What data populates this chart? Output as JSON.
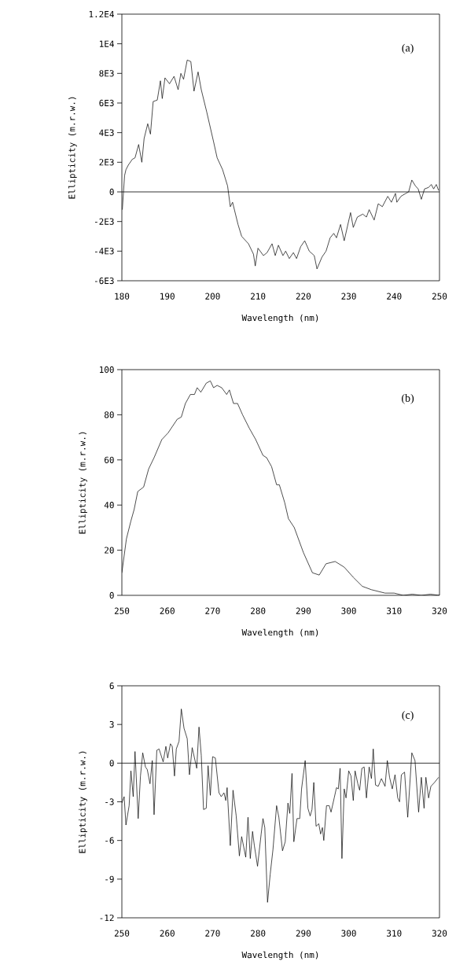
{
  "chart_data": [
    {
      "type": "line",
      "xlabel": "Wavelength (nm)",
      "ylabel": "Ellipticity (m.r.w.)",
      "annotations": [
        "(a)"
      ],
      "xlim": [
        180,
        250
      ],
      "xticks": [
        180,
        190,
        200,
        210,
        220,
        230,
        240,
        250
      ],
      "ylim": [
        -6000,
        12000
      ],
      "yticks": [
        {
          "value": -6000,
          "label": "-6E3"
        },
        {
          "value": -4000,
          "label": "-4E3"
        },
        {
          "value": -2000,
          "label": "-2E3"
        },
        0,
        {
          "value": 2000,
          "label": "2E3"
        },
        {
          "value": 4000,
          "label": "4E3"
        },
        {
          "value": 6000,
          "label": "6E3"
        },
        {
          "value": 8000,
          "label": "8E3"
        },
        {
          "value": 10000,
          "label": "1E4"
        },
        {
          "value": 12000,
          "label": "1.2E4"
        }
      ],
      "ref_lines": [
        {
          "axis": "y",
          "value": 0
        }
      ],
      "series": [
        {
          "color": "#000000",
          "x": [
            180.1,
            180.6,
            180.9,
            181.4,
            182.3,
            182.9,
            183.7,
            184.4,
            184.9,
            185.7,
            186.3,
            186.9,
            187.8,
            188.5,
            188.9,
            189.5,
            190.5,
            191.5,
            192.4,
            193.0,
            193.6,
            194.4,
            195.2,
            195.9,
            196.8,
            197.5,
            198.7,
            200.2,
            201.0,
            202.2,
            203.3,
            203.9,
            204.4,
            205.6,
            206.4,
            207.9,
            209.0,
            209.4,
            210.0,
            211.2,
            212.0,
            213.1,
            213.8,
            214.5,
            215.5,
            216.1,
            216.9,
            217.8,
            218.5,
            219.4,
            220.3,
            221.3,
            222.4,
            223.0,
            224.1,
            225.0,
            225.9,
            226.7,
            227.3,
            228.2,
            229.0,
            230.4,
            231.0,
            231.9,
            233.1,
            233.9,
            234.5,
            235.6,
            236.5,
            237.4,
            238.6,
            239.4,
            240.3,
            240.6,
            241.5,
            242.6,
            243.2,
            243.9,
            244.7,
            245.3,
            246.0,
            246.7,
            247.6,
            248.2,
            248.7,
            249.3,
            249.8
          ],
          "values": [
            -1200,
            1100,
            1500,
            1800,
            2200,
            2300,
            3200,
            2000,
            3600,
            4600,
            3900,
            6100,
            6200,
            7500,
            6300,
            7700,
            7300,
            7800,
            6900,
            8000,
            7600,
            8900,
            8800,
            6800,
            8100,
            6900,
            5400,
            3400,
            2300,
            1500,
            400,
            -1000,
            -700,
            -2200,
            -3000,
            -3500,
            -4200,
            -5000,
            -3800,
            -4300,
            -4100,
            -3500,
            -4300,
            -3600,
            -4300,
            -4000,
            -4500,
            -4100,
            -4500,
            -3700,
            -3300,
            -4000,
            -4300,
            -5200,
            -4400,
            -4000,
            -3100,
            -2800,
            -3100,
            -2200,
            -3300,
            -1400,
            -2400,
            -1700,
            -1500,
            -1700,
            -1200,
            -1900,
            -800,
            -1000,
            -300,
            -700,
            -100,
            -700,
            -300,
            -100,
            0,
            800,
            400,
            200,
            -500,
            200,
            300,
            500,
            200,
            500,
            100
          ]
        }
      ]
    },
    {
      "type": "line",
      "xlabel": "Wavelength (nm)",
      "ylabel": "Ellipticity (m.r.w.)",
      "annotations": [
        "(b)"
      ],
      "xlim": [
        250,
        320
      ],
      "xticks": [
        250,
        260,
        270,
        280,
        290,
        300,
        310,
        320
      ],
      "ylim": [
        0,
        100
      ],
      "yticks": [
        0,
        20,
        40,
        60,
        80,
        100
      ],
      "series": [
        {
          "color": "#000000",
          "x": [
            250,
            251,
            252,
            252.7,
            253.5,
            254.8,
            255.9,
            257.1,
            258.8,
            260.2,
            262.2,
            263.1,
            264.0,
            265.1,
            266.0,
            266.6,
            267.4,
            268.6,
            269.5,
            270.2,
            271.0,
            272.0,
            273.1,
            273.7,
            274.6,
            275.5,
            276.6,
            278.1,
            279.5,
            281.1,
            281.9,
            283.0,
            284.1,
            284.7,
            285.9,
            286.7,
            288,
            290,
            292,
            293.5,
            295,
            297,
            299,
            301,
            303,
            305,
            308,
            310,
            312,
            314,
            316,
            318,
            320
          ],
          "values": [
            10,
            25,
            33,
            38,
            46,
            48,
            56,
            61,
            69,
            72,
            78,
            79,
            85,
            89,
            89,
            92,
            90,
            94,
            95,
            92,
            93,
            92,
            89,
            91,
            85,
            85,
            80,
            74,
            69,
            62,
            61,
            57,
            49,
            49,
            41,
            34,
            30,
            19,
            10,
            9,
            14,
            15,
            12.5,
            8,
            4,
            2.5,
            1,
            1,
            0,
            0.5,
            0,
            0.5,
            0
          ]
        }
      ]
    },
    {
      "type": "line",
      "xlabel": "Wavelength (nm)",
      "ylabel": "Ellipticity (m.r.w.)",
      "annotations": [
        "(c)"
      ],
      "xlim": [
        250,
        320
      ],
      "xticks": [
        250,
        260,
        270,
        280,
        290,
        300,
        310,
        320
      ],
      "ylim": [
        -12,
        6
      ],
      "yticks": [
        -12,
        -9,
        -6,
        -3,
        0,
        3,
        6
      ],
      "ref_lines": [
        {
          "axis": "y",
          "value": 0
        }
      ],
      "series": [
        {
          "color": "#000000",
          "x": [
            250.0,
            250.5,
            250.9,
            251.6,
            252.0,
            252.5,
            252.9,
            253.6,
            254.1,
            254.6,
            255.2,
            255.6,
            256.2,
            256.7,
            257.1,
            257.7,
            258.2,
            259.1,
            259.7,
            260.1,
            260.7,
            261.1,
            261.6,
            262.0,
            262.6,
            263.1,
            263.7,
            264.4,
            264.9,
            265.5,
            266.5,
            267.0,
            267.5,
            268.0,
            268.6,
            269.0,
            269.5,
            270.0,
            270.6,
            271.4,
            271.9,
            272.5,
            272.9,
            273.2,
            273.9,
            274.5,
            275.2,
            275.9,
            276.4,
            277.3,
            277.8,
            278.3,
            278.8,
            279.2,
            279.9,
            280.7,
            281.1,
            281.5,
            282.1,
            282.7,
            283.3,
            284.1,
            284.6,
            285.4,
            286.0,
            286.6,
            287.0,
            287.5,
            287.9,
            288.6,
            289.2,
            289.6,
            290.4,
            291.0,
            291.5,
            291.9,
            292.3,
            292.8,
            293.4,
            293.8,
            294.2,
            294.5,
            295.1,
            295.7,
            296.1,
            296.8,
            297.3,
            297.7,
            298.1,
            298.5,
            299.0,
            299.4,
            300.0,
            300.5,
            301.0,
            301.4,
            302.0,
            302.4,
            302.9,
            303.4,
            303.9,
            304.5,
            305.0,
            305.4,
            305.9,
            306.5,
            307.2,
            308.0,
            308.5,
            309.0,
            309.6,
            310.2,
            310.8,
            311.2,
            311.6,
            312.3,
            313.0,
            313.9,
            314.6,
            315.4,
            316.0,
            316.6,
            317.0,
            317.6,
            318.1,
            318.9,
            319.8
          ],
          "values": [
            -3.1,
            -2.6,
            -4.8,
            -3.3,
            -0.6,
            -2.6,
            0.9,
            -4.3,
            -1.0,
            0.8,
            -0.3,
            -0.5,
            -1.6,
            0.2,
            -4.0,
            1.0,
            1.1,
            0.1,
            1.3,
            0.4,
            1.5,
            1.3,
            -1.0,
            1.1,
            1.7,
            4.2,
            2.7,
            1.9,
            -0.9,
            1.2,
            -0.4,
            2.8,
            0.6,
            -3.6,
            -3.5,
            -0.2,
            -2.5,
            0.5,
            0.4,
            -2.3,
            -2.6,
            -2.3,
            -2.9,
            -1.9,
            -6.4,
            -2.1,
            -4.1,
            -7.2,
            -5.7,
            -7.3,
            -4.2,
            -7.4,
            -5.3,
            -6.4,
            -8.0,
            -5.5,
            -4.3,
            -5.0,
            -10.8,
            -8.6,
            -6.7,
            -3.3,
            -4.2,
            -6.8,
            -6.1,
            -3.1,
            -3.9,
            -0.8,
            -6.1,
            -4.3,
            -4.3,
            -2.0,
            0.2,
            -3.5,
            -4.1,
            -3.6,
            -1.5,
            -4.9,
            -4.7,
            -5.5,
            -5.0,
            -6.0,
            -3.3,
            -3.3,
            -3.8,
            -2.7,
            -1.9,
            -2.0,
            -0.4,
            -7.4,
            -2.0,
            -2.7,
            -0.6,
            -1.0,
            -2.9,
            -0.6,
            -1.6,
            -2.1,
            -0.4,
            -0.3,
            -2.7,
            -0.3,
            -1.2,
            1.1,
            -1.7,
            -1.8,
            -1.2,
            -1.8,
            0.2,
            -1.1,
            -2.0,
            -0.9,
            -2.7,
            -3.0,
            -0.9,
            -0.7,
            -4.2,
            0.8,
            0.2,
            -3.8,
            -1.1,
            -3.5,
            -1.1,
            -2.7,
            -1.8,
            -1.5,
            -1.1
          ]
        }
      ]
    }
  ]
}
